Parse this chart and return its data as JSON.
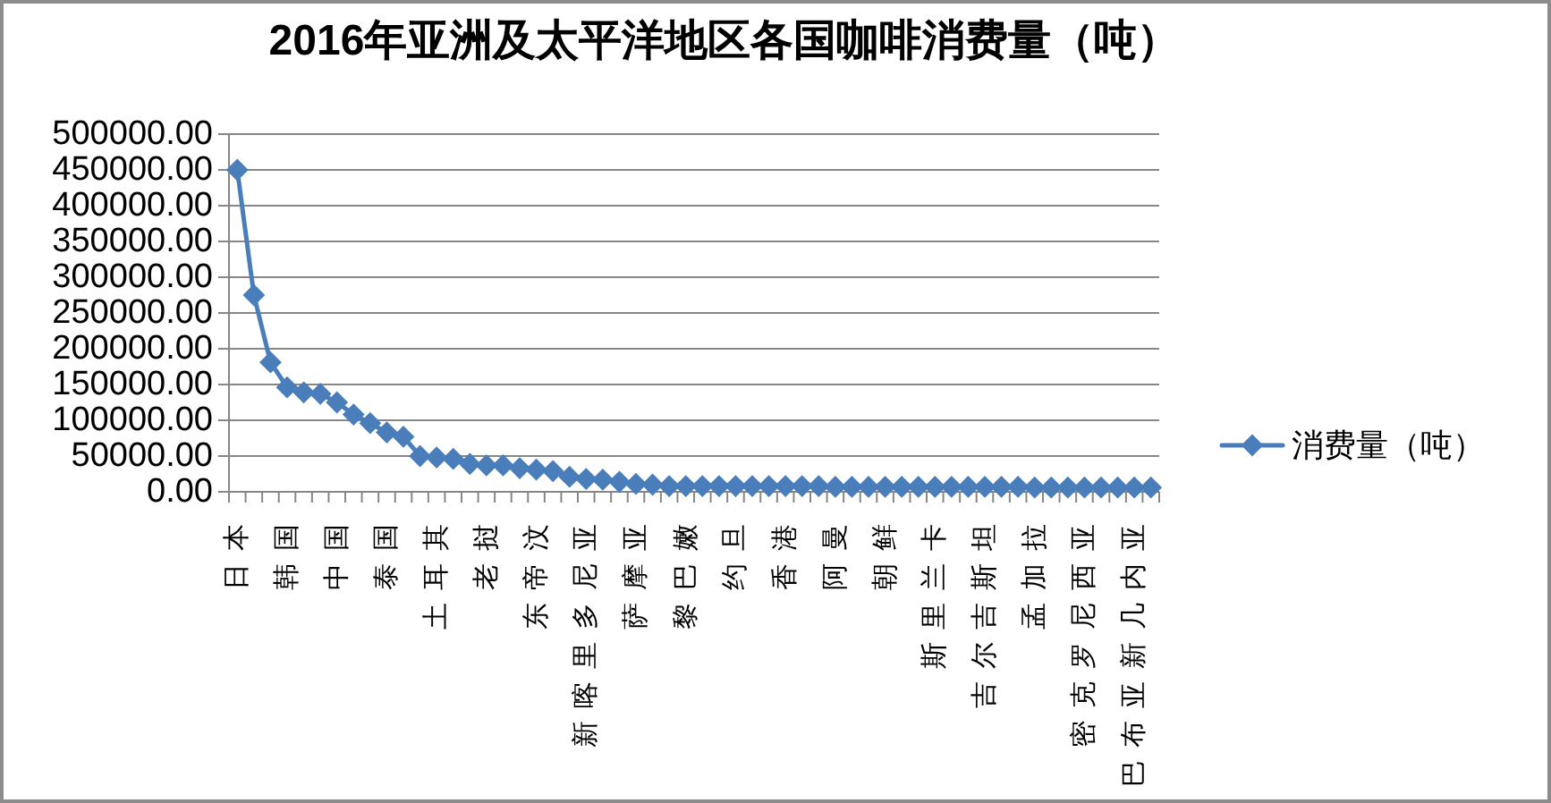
{
  "chart_data": {
    "type": "line",
    "title": "2016年亚洲及太平洋地区各国咖啡消费量（吨）",
    "categories": [
      "日本",
      null,
      null,
      "韩国",
      null,
      null,
      "中国",
      null,
      null,
      "泰国",
      null,
      null,
      "土耳其",
      null,
      null,
      "老挝",
      null,
      null,
      "东帝汶",
      null,
      null,
      "新喀里多尼亚",
      null,
      null,
      "萨摩亚",
      null,
      null,
      "黎巴嫩",
      null,
      null,
      "约旦",
      null,
      null,
      "香港",
      null,
      null,
      "阿曼",
      null,
      null,
      "朝鲜",
      null,
      null,
      "斯里兰卡",
      null,
      null,
      "吉尔吉斯坦",
      null,
      null,
      "孟加拉",
      null,
      null,
      "密克罗尼西亚",
      null,
      null,
      "巴布亚新几内亚",
      null
    ],
    "series": [
      {
        "name": "消费量（吨）",
        "color": "#4a7ebb",
        "values": [
          450000,
          275000,
          181000,
          146000,
          139000,
          137000,
          125000,
          108000,
          96000,
          83000,
          77000,
          50000,
          48000,
          46000,
          39000,
          37000,
          37000,
          33000,
          31000,
          29000,
          21000,
          18000,
          17000,
          14000,
          11000,
          10000,
          8000,
          8000,
          8000,
          8000,
          8000,
          8000,
          8000,
          8000,
          8000,
          8000,
          7000,
          7000,
          7000,
          7000,
          7000,
          7000,
          7000,
          7000,
          7000,
          7000,
          7000,
          7000,
          6000,
          6000,
          6000,
          6000,
          6000,
          6000,
          6000,
          6000
        ]
      }
    ],
    "ylim": [
      0,
      500000
    ],
    "yticks": [
      {
        "value": 0,
        "label": "0.00"
      },
      {
        "value": 50000,
        "label": "50000.00"
      },
      {
        "value": 100000,
        "label": "100000.00"
      },
      {
        "value": 150000,
        "label": "150000.00"
      },
      {
        "value": 200000,
        "label": "200000.00"
      },
      {
        "value": 250000,
        "label": "250000.00"
      },
      {
        "value": 300000,
        "label": "300000.00"
      },
      {
        "value": 350000,
        "label": "350000.00"
      },
      {
        "value": 400000,
        "label": "400000.00"
      },
      {
        "value": 450000,
        "label": "450000.00"
      },
      {
        "value": 500000,
        "label": "500000.00"
      }
    ],
    "grid": "y",
    "legend": "right",
    "marker": "diamond"
  }
}
